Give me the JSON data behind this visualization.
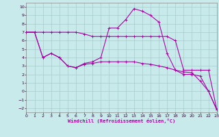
{
  "bg_color": "#c8eaea",
  "grid_color": "#a8cccc",
  "line_color": "#aa00aa",
  "xlim": [
    0,
    23
  ],
  "ylim": [
    -2.5,
    10.5
  ],
  "xticks": [
    0,
    1,
    2,
    3,
    4,
    5,
    6,
    7,
    8,
    9,
    10,
    11,
    12,
    13,
    14,
    15,
    16,
    17,
    18,
    19,
    20,
    21,
    22,
    23
  ],
  "yticks": [
    -2,
    -1,
    0,
    1,
    2,
    3,
    4,
    5,
    6,
    7,
    8,
    9,
    10
  ],
  "xlabel": "Windchill (Refroidissement éolien,°C)",
  "line1_x": [
    0,
    1,
    2,
    3,
    4,
    5,
    6,
    7,
    8,
    9,
    10,
    11,
    12,
    13,
    14,
    15,
    16,
    17,
    18,
    19,
    20,
    21,
    22,
    23
  ],
  "line1_y": [
    7.0,
    7.0,
    7.0,
    7.0,
    7.0,
    7.0,
    7.0,
    6.8,
    6.5,
    6.5,
    6.5,
    6.5,
    6.5,
    6.5,
    6.5,
    6.5,
    6.5,
    6.5,
    6.0,
    2.5,
    2.5,
    2.5,
    2.5,
    -2.2
  ],
  "line2_x": [
    0,
    1,
    2,
    3,
    4,
    5,
    6,
    7,
    8,
    9,
    10,
    11,
    12,
    13,
    14,
    15,
    16,
    17,
    18,
    19,
    20,
    21,
    22,
    23
  ],
  "line2_y": [
    7.0,
    7.0,
    4.0,
    4.5,
    4.0,
    3.0,
    2.8,
    3.3,
    3.5,
    4.0,
    7.5,
    7.5,
    8.5,
    9.8,
    9.5,
    9.0,
    8.2,
    4.5,
    2.5,
    2.3,
    2.2,
    1.2,
    0.0,
    -2.2
  ],
  "line3_x": [
    0,
    1,
    2,
    3,
    4,
    5,
    6,
    7,
    8,
    9,
    10,
    11,
    12,
    13,
    14,
    15,
    16,
    17,
    18,
    19,
    20,
    21,
    22,
    23
  ],
  "line3_y": [
    7.0,
    7.0,
    4.0,
    4.5,
    4.0,
    3.0,
    2.8,
    3.2,
    3.3,
    3.5,
    3.5,
    3.5,
    3.5,
    3.5,
    3.3,
    3.2,
    3.0,
    2.8,
    2.5,
    2.0,
    2.0,
    1.8,
    0.0,
    -2.2
  ]
}
